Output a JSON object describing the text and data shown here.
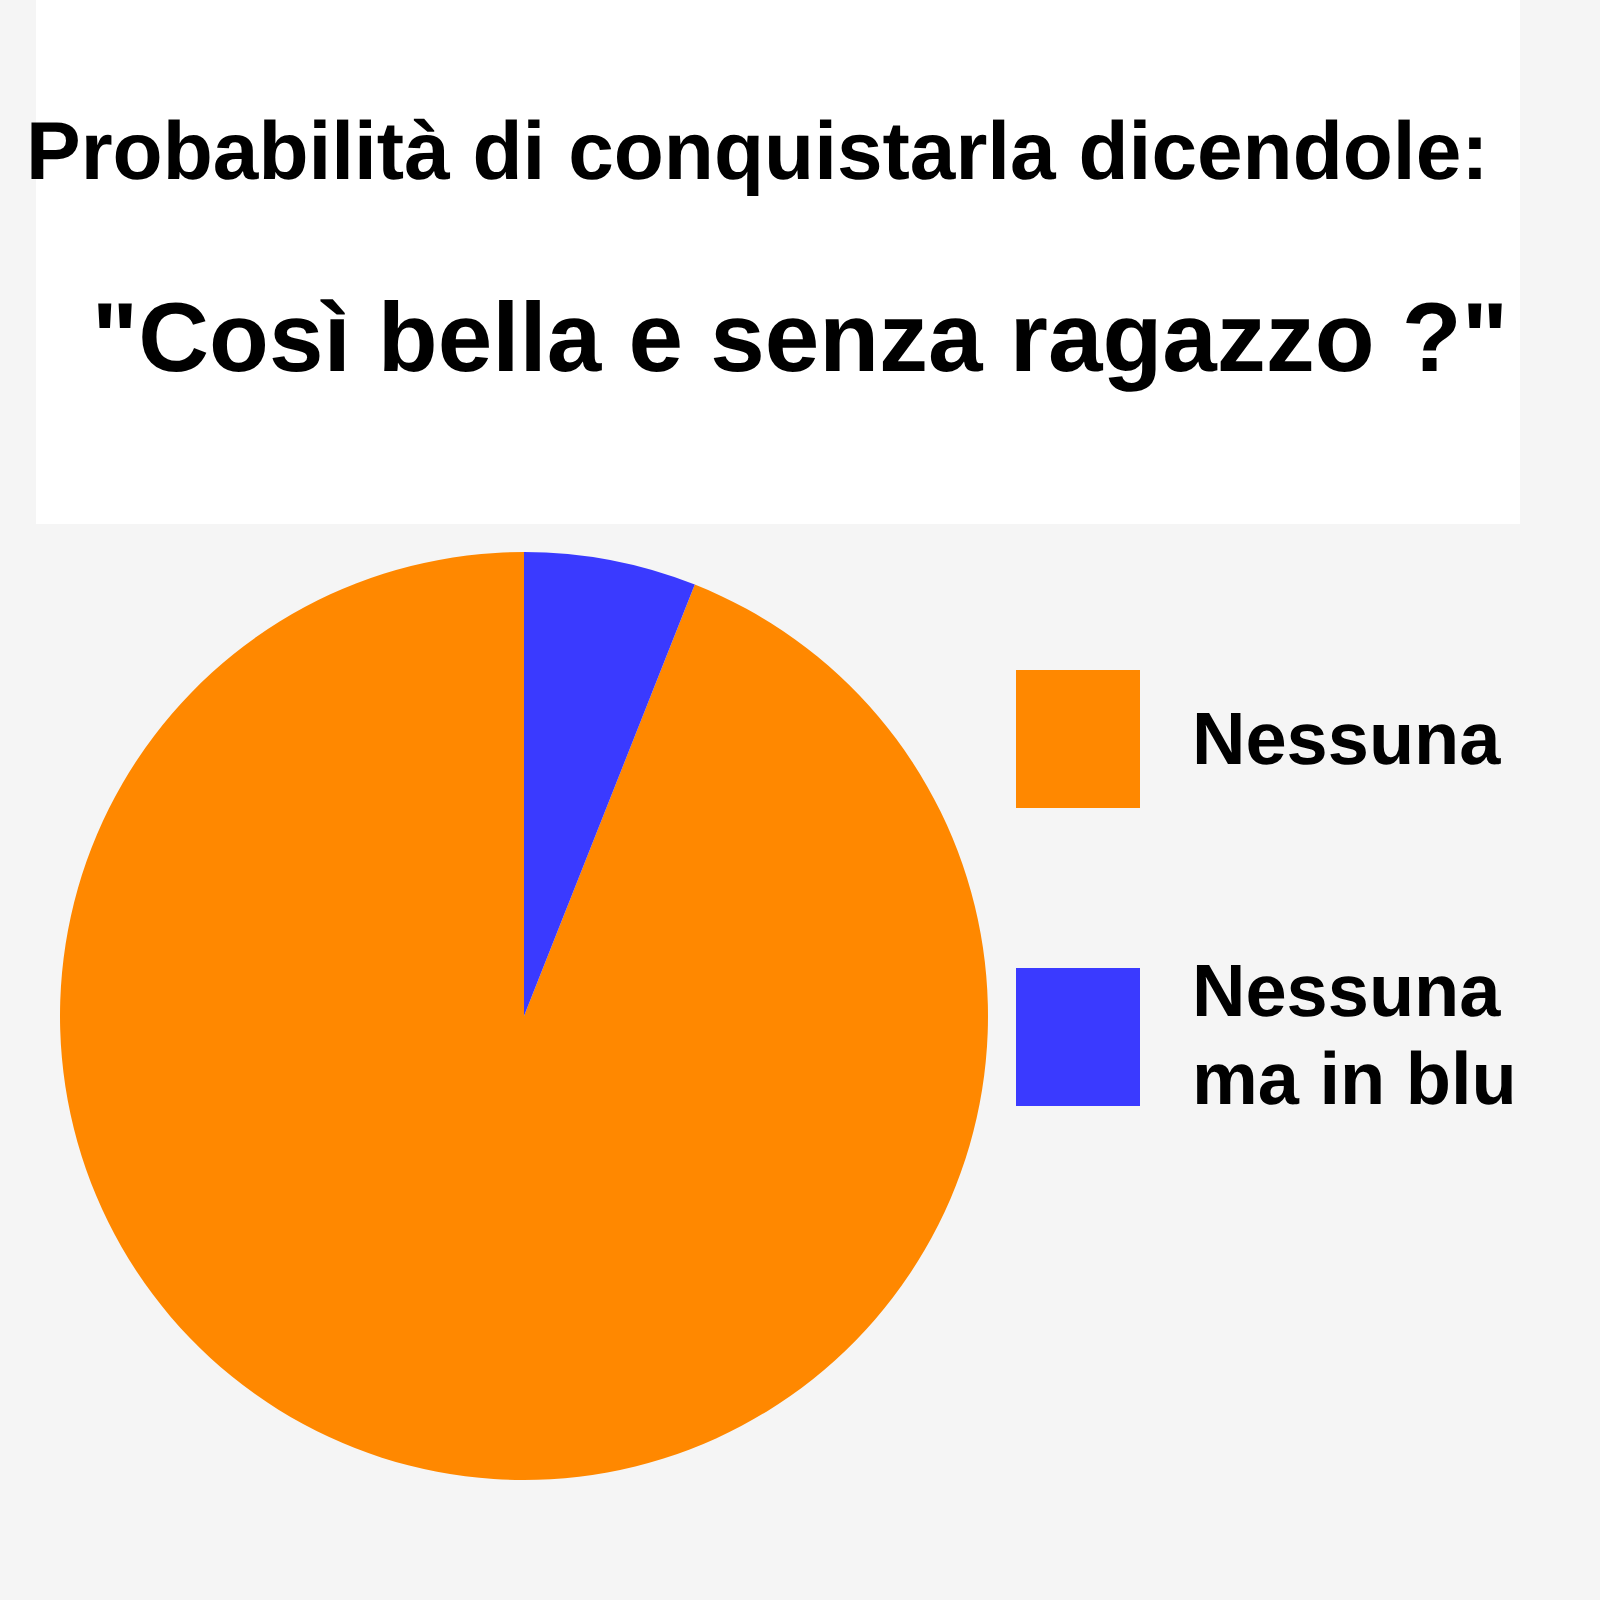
{
  "chart_data": {
    "type": "pie",
    "title": "Probabilità di conquistarla dicendole:",
    "subtitle": "\"Così bella e senza ragazzo ?\"",
    "categories": [
      "Nessuna",
      "Nessuna ma in blu"
    ],
    "values": [
      94,
      6
    ],
    "colors": [
      "#ff8800",
      "#3a3aff"
    ],
    "legend": "right"
  }
}
